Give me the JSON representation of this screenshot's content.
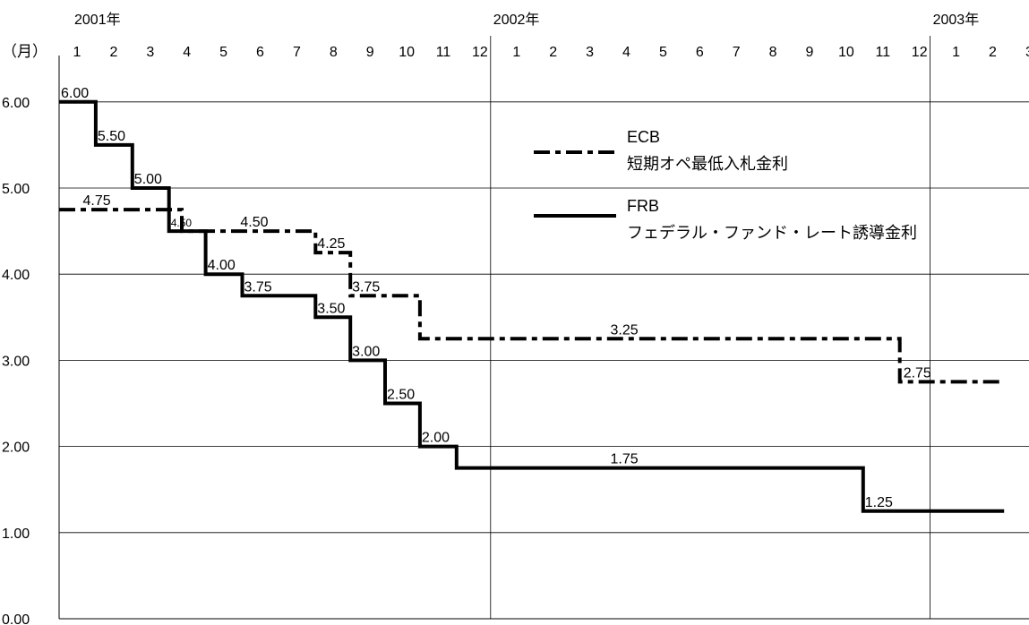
{
  "chart_data": {
    "type": "line",
    "x_unit_label": "（月）",
    "year_labels": [
      {
        "label": "2001年",
        "month_index": 0
      },
      {
        "label": "2002年",
        "month_index": 12
      },
      {
        "label": "2003年",
        "month_index": 24
      }
    ],
    "month_ticks": [
      "1",
      "2",
      "3",
      "4",
      "5",
      "6",
      "7",
      "8",
      "9",
      "10",
      "11",
      "12",
      "1",
      "2",
      "3",
      "4",
      "5",
      "6",
      "7",
      "8",
      "9",
      "10",
      "11",
      "12",
      "1",
      "2",
      "3"
    ],
    "y_ticks": [
      "0.00",
      "1.00",
      "2.00",
      "3.00",
      "4.00",
      "5.00",
      "6.00"
    ],
    "ylim": [
      0,
      6.8
    ],
    "xlim": [
      0,
      26.8
    ],
    "legend": [
      {
        "name": "ECB",
        "description": "短期オペ最低入札金利",
        "style": "dash-dot"
      },
      {
        "name": "FRB",
        "description": "フェデラル・ファンド・レート誘導金利",
        "style": "solid"
      }
    ],
    "series": [
      {
        "name": "ECB",
        "style": "dash-dot",
        "points": [
          [
            0,
            4.75
          ],
          [
            3.35,
            4.75
          ],
          [
            3.35,
            4.5
          ],
          [
            7.0,
            4.5
          ],
          [
            7.0,
            4.25
          ],
          [
            7.95,
            4.25
          ],
          [
            7.95,
            3.75
          ],
          [
            9.85,
            3.75
          ],
          [
            9.85,
            3.25
          ],
          [
            22.95,
            3.25
          ],
          [
            22.95,
            2.75
          ],
          [
            25.8,
            2.75
          ]
        ]
      },
      {
        "name": "FRB",
        "style": "solid",
        "points": [
          [
            0,
            6.0
          ],
          [
            1.0,
            6.0
          ],
          [
            1.0,
            5.5
          ],
          [
            2.0,
            5.5
          ],
          [
            2.0,
            5.0
          ],
          [
            3.0,
            5.0
          ],
          [
            3.0,
            4.5
          ],
          [
            4.0,
            4.5
          ],
          [
            4.0,
            4.0
          ],
          [
            5.0,
            4.0
          ],
          [
            5.0,
            3.75
          ],
          [
            7.0,
            3.75
          ],
          [
            7.0,
            3.5
          ],
          [
            7.95,
            3.5
          ],
          [
            7.95,
            3.0
          ],
          [
            8.9,
            3.0
          ],
          [
            8.9,
            2.5
          ],
          [
            9.85,
            2.5
          ],
          [
            9.85,
            2.0
          ],
          [
            10.85,
            2.0
          ],
          [
            10.85,
            1.75
          ],
          [
            21.95,
            1.75
          ],
          [
            21.95,
            1.25
          ],
          [
            25.8,
            1.25
          ]
        ]
      }
    ],
    "data_labels": [
      {
        "series": "FRB",
        "text": "6.00",
        "x": 0.0,
        "y": 6.0
      },
      {
        "series": "FRB",
        "text": "5.50",
        "x": 1.0,
        "y": 5.5
      },
      {
        "series": "FRB",
        "text": "5.00",
        "x": 2.0,
        "y": 5.0
      },
      {
        "series": "ECB",
        "text": "4.75",
        "x": 0.6,
        "y": 4.75
      },
      {
        "series": "ECB",
        "text": "4.50",
        "x": 3.0,
        "y": 4.5
      },
      {
        "series": "ECB",
        "text": "4.50",
        "x": 4.9,
        "y": 4.5
      },
      {
        "series": "ECB",
        "text": "4.25",
        "x": 7.0,
        "y": 4.25
      },
      {
        "series": "FRB",
        "text": "4.00",
        "x": 4.0,
        "y": 4.0
      },
      {
        "series": "FRB",
        "text": "3.75",
        "x": 5.0,
        "y": 3.75
      },
      {
        "series": "ECB",
        "text": "3.75",
        "x": 7.95,
        "y": 3.75
      },
      {
        "series": "FRB",
        "text": "3.50",
        "x": 7.0,
        "y": 3.5
      },
      {
        "series": "ECB",
        "text": "3.25",
        "x": 15.0,
        "y": 3.25
      },
      {
        "series": "FRB",
        "text": "3.00",
        "x": 7.95,
        "y": 3.0
      },
      {
        "series": "ECB",
        "text": "2.75",
        "x": 23.0,
        "y": 2.75
      },
      {
        "series": "FRB",
        "text": "2.50",
        "x": 8.9,
        "y": 2.5
      },
      {
        "series": "FRB",
        "text": "2.00",
        "x": 9.85,
        "y": 2.0
      },
      {
        "series": "FRB",
        "text": "1.75",
        "x": 15.0,
        "y": 1.75
      },
      {
        "series": "FRB",
        "text": "1.25",
        "x": 21.95,
        "y": 1.25
      }
    ],
    "grid": true
  }
}
